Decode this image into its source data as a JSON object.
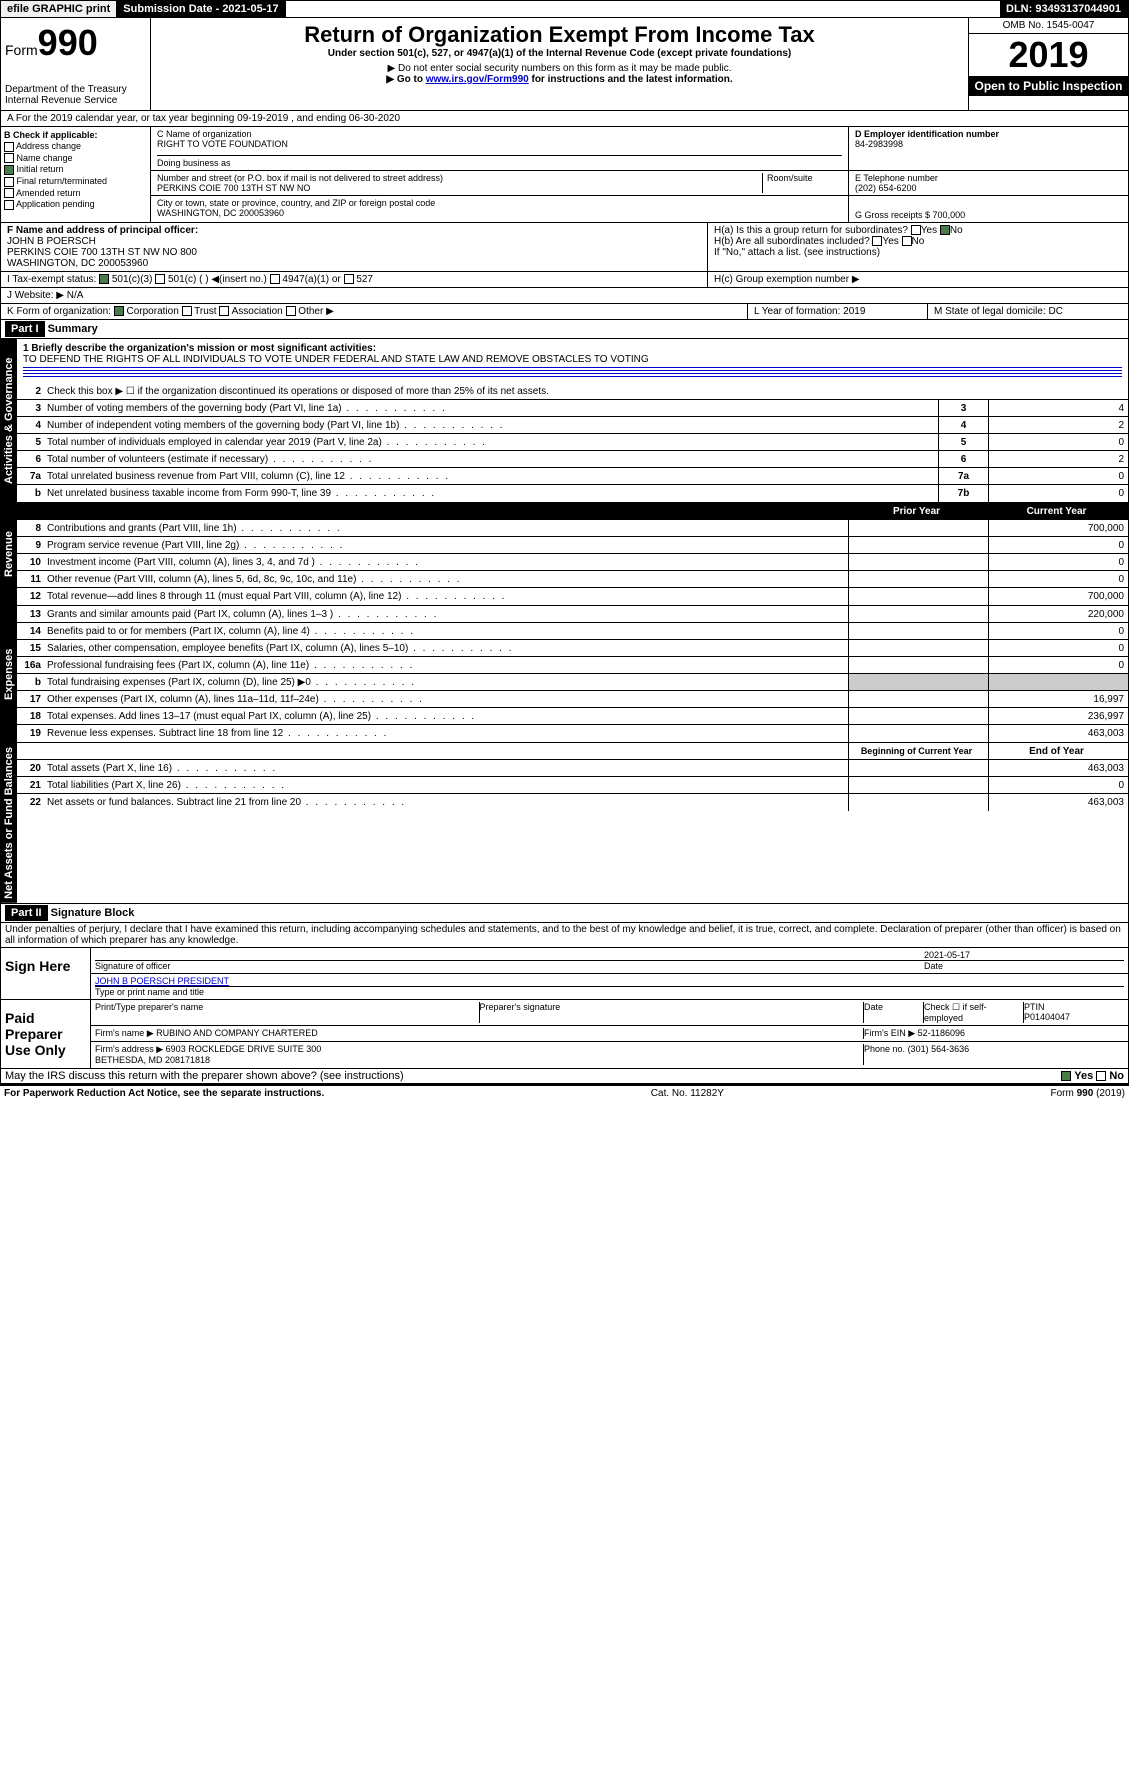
{
  "topbar": {
    "efile": "efile GRAPHIC print",
    "subdate_label": "Submission Date - 2021-05-17",
    "dln": "DLN: 93493137044901"
  },
  "header": {
    "form_label": "Form",
    "form_num": "990",
    "dept": "Department of the Treasury",
    "irs": "Internal Revenue Service",
    "title": "Return of Organization Exempt From Income Tax",
    "subtitle": "Under section 501(c), 527, or 4947(a)(1) of the Internal Revenue Code (except private foundations)",
    "note1": "▶ Do not enter social security numbers on this form as it may be made public.",
    "note2_pre": "▶ Go to ",
    "note2_link": "www.irs.gov/Form990",
    "note2_post": " for instructions and the latest information.",
    "omb": "OMB No. 1545-0047",
    "year": "2019",
    "open": "Open to Public Inspection"
  },
  "rowA": "A For the 2019 calendar year, or tax year beginning 09-19-2019   , and ending 06-30-2020",
  "boxB": {
    "label": "B Check if applicable:",
    "opts": [
      "Address change",
      "Name change",
      "Initial return",
      "Final return/terminated",
      "Amended return",
      "Application pending"
    ],
    "checked_idx": 2
  },
  "boxC": {
    "name_label": "C Name of organization",
    "name": "RIGHT TO VOTE FOUNDATION",
    "dba": "Doing business as",
    "addr_label": "Number and street (or P.O. box if mail is not delivered to street address)",
    "room": "Room/suite",
    "addr": "PERKINS COIE 700 13TH ST NW NO",
    "city_label": "City or town, state or province, country, and ZIP or foreign postal code",
    "city": "WASHINGTON, DC  200053960"
  },
  "boxD": {
    "label": "D Employer identification number",
    "val": "84-2983998"
  },
  "boxE": {
    "label": "E Telephone number",
    "val": "(202) 654-6200"
  },
  "boxG": {
    "label": "G Gross receipts $",
    "val": "700,000"
  },
  "boxF": {
    "label": "F Name and address of principal officer:",
    "name": "JOHN B POERSCH",
    "addr": "PERKINS COIE 700 13TH ST NW NO 800",
    "city": "WASHINGTON, DC  200053960"
  },
  "boxH": {
    "a": "H(a) Is this a group return for subordinates?",
    "b": "H(b) Are all subordinates included?",
    "note": "If \"No,\" attach a list. (see instructions)",
    "c": "H(c) Group exemption number ▶",
    "yes": "Yes",
    "no": "No"
  },
  "boxI": {
    "label": "I   Tax-exempt status:",
    "opt1": "501(c)(3)",
    "opt2": "501(c) (  ) ◀(insert no.)",
    "opt3": "4947(a)(1) or",
    "opt4": "527"
  },
  "boxJ": {
    "label": "J   Website: ▶",
    "val": "N/A"
  },
  "boxK": {
    "label": "K Form of organization:",
    "corp": "Corporation",
    "trust": "Trust",
    "assoc": "Association",
    "other": "Other ▶"
  },
  "boxL": {
    "label": "L Year of formation:",
    "val": "2019"
  },
  "boxM": {
    "label": "M State of legal domicile:",
    "val": "DC"
  },
  "part1": {
    "tag": "Part I",
    "title": "Summary"
  },
  "sidebars": {
    "gov": "Activities & Governance",
    "rev": "Revenue",
    "exp": "Expenses",
    "net": "Net Assets or Fund Balances"
  },
  "summary": {
    "l1": "1  Briefly describe the organization's mission or most significant activities:",
    "l1val": "TO DEFEND THE RIGHTS OF ALL INDIVIDUALS TO VOTE UNDER FEDERAL AND STATE LAW AND REMOVE OBSTACLES TO VOTING",
    "l2": "Check this box ▶ ☐ if the organization discontinued its operations or disposed of more than 25% of its net assets.",
    "rows_gov": [
      {
        "n": "3",
        "t": "Number of voting members of the governing body (Part VI, line 1a)",
        "c": "3",
        "v": "4"
      },
      {
        "n": "4",
        "t": "Number of independent voting members of the governing body (Part VI, line 1b)",
        "c": "4",
        "v": "2"
      },
      {
        "n": "5",
        "t": "Total number of individuals employed in calendar year 2019 (Part V, line 2a)",
        "c": "5",
        "v": "0"
      },
      {
        "n": "6",
        "t": "Total number of volunteers (estimate if necessary)",
        "c": "6",
        "v": "2"
      },
      {
        "n": "7a",
        "t": "Total unrelated business revenue from Part VIII, column (C), line 12",
        "c": "7a",
        "v": "0"
      },
      {
        "n": "b",
        "t": "Net unrelated business taxable income from Form 990-T, line 39",
        "c": "7b",
        "v": "0"
      }
    ],
    "col_prior": "Prior Year",
    "col_current": "Current Year",
    "rows_rev": [
      {
        "n": "8",
        "t": "Contributions and grants (Part VIII, line 1h)",
        "p": "",
        "c": "700,000"
      },
      {
        "n": "9",
        "t": "Program service revenue (Part VIII, line 2g)",
        "p": "",
        "c": "0"
      },
      {
        "n": "10",
        "t": "Investment income (Part VIII, column (A), lines 3, 4, and 7d )",
        "p": "",
        "c": "0"
      },
      {
        "n": "11",
        "t": "Other revenue (Part VIII, column (A), lines 5, 6d, 8c, 9c, 10c, and 11e)",
        "p": "",
        "c": "0"
      },
      {
        "n": "12",
        "t": "Total revenue—add lines 8 through 11 (must equal Part VIII, column (A), line 12)",
        "p": "",
        "c": "700,000"
      }
    ],
    "rows_exp": [
      {
        "n": "13",
        "t": "Grants and similar amounts paid (Part IX, column (A), lines 1–3 )",
        "p": "",
        "c": "220,000"
      },
      {
        "n": "14",
        "t": "Benefits paid to or for members (Part IX, column (A), line 4)",
        "p": "",
        "c": "0"
      },
      {
        "n": "15",
        "t": "Salaries, other compensation, employee benefits (Part IX, column (A), lines 5–10)",
        "p": "",
        "c": "0"
      },
      {
        "n": "16a",
        "t": "Professional fundraising fees (Part IX, column (A), line 11e)",
        "p": "",
        "c": "0"
      },
      {
        "n": "b",
        "t": "Total fundraising expenses (Part IX, column (D), line 25) ▶0",
        "grey": true
      },
      {
        "n": "17",
        "t": "Other expenses (Part IX, column (A), lines 11a–11d, 11f–24e)",
        "p": "",
        "c": "16,997"
      },
      {
        "n": "18",
        "t": "Total expenses. Add lines 13–17 (must equal Part IX, column (A), line 25)",
        "p": "",
        "c": "236,997"
      },
      {
        "n": "19",
        "t": "Revenue less expenses. Subtract line 18 from line 12",
        "p": "",
        "c": "463,003"
      }
    ],
    "col_begin": "Beginning of Current Year",
    "col_end": "End of Year",
    "rows_net": [
      {
        "n": "20",
        "t": "Total assets (Part X, line 16)",
        "p": "",
        "c": "463,003"
      },
      {
        "n": "21",
        "t": "Total liabilities (Part X, line 26)",
        "p": "",
        "c": "0"
      },
      {
        "n": "22",
        "t": "Net assets or fund balances. Subtract line 21 from line 20",
        "p": "",
        "c": "463,003"
      }
    ]
  },
  "part2": {
    "tag": "Part II",
    "title": "Signature Block"
  },
  "perjury": "Under penalties of perjury, I declare that I have examined this return, including accompanying schedules and statements, and to the best of my knowledge and belief, it is true, correct, and complete. Declaration of preparer (other than officer) is based on all information of which preparer has any knowledge.",
  "sign": {
    "here": "Sign Here",
    "sig_officer": "Signature of officer",
    "date": "2021-05-17",
    "date_label": "Date",
    "name": "JOHN B POERSCH  PRESIDENT",
    "name_label": "Type or print name and title"
  },
  "paid": {
    "label": "Paid Preparer Use Only",
    "col1": "Print/Type preparer's name",
    "col2": "Preparer's signature",
    "col3": "Date",
    "col4": "Check ☐ if self-employed",
    "col5": "PTIN",
    "ptin": "P01404047",
    "firm_label": "Firm's name    ▶",
    "firm": "RUBINO AND COMPANY CHARTERED",
    "ein_label": "Firm's EIN ▶",
    "ein": "52-1186096",
    "addr_label": "Firm's address ▶",
    "addr": "6903 ROCKLEDGE DRIVE SUITE 300",
    "addr2": "BETHESDA, MD  208171818",
    "phone_label": "Phone no.",
    "phone": "(301) 564-3636"
  },
  "discuss": "May the IRS discuss this return with the preparer shown above? (see instructions)",
  "footer": {
    "pra": "For Paperwork Reduction Act Notice, see the separate instructions.",
    "cat": "Cat. No. 11282Y",
    "form": "Form 990 (2019)"
  }
}
